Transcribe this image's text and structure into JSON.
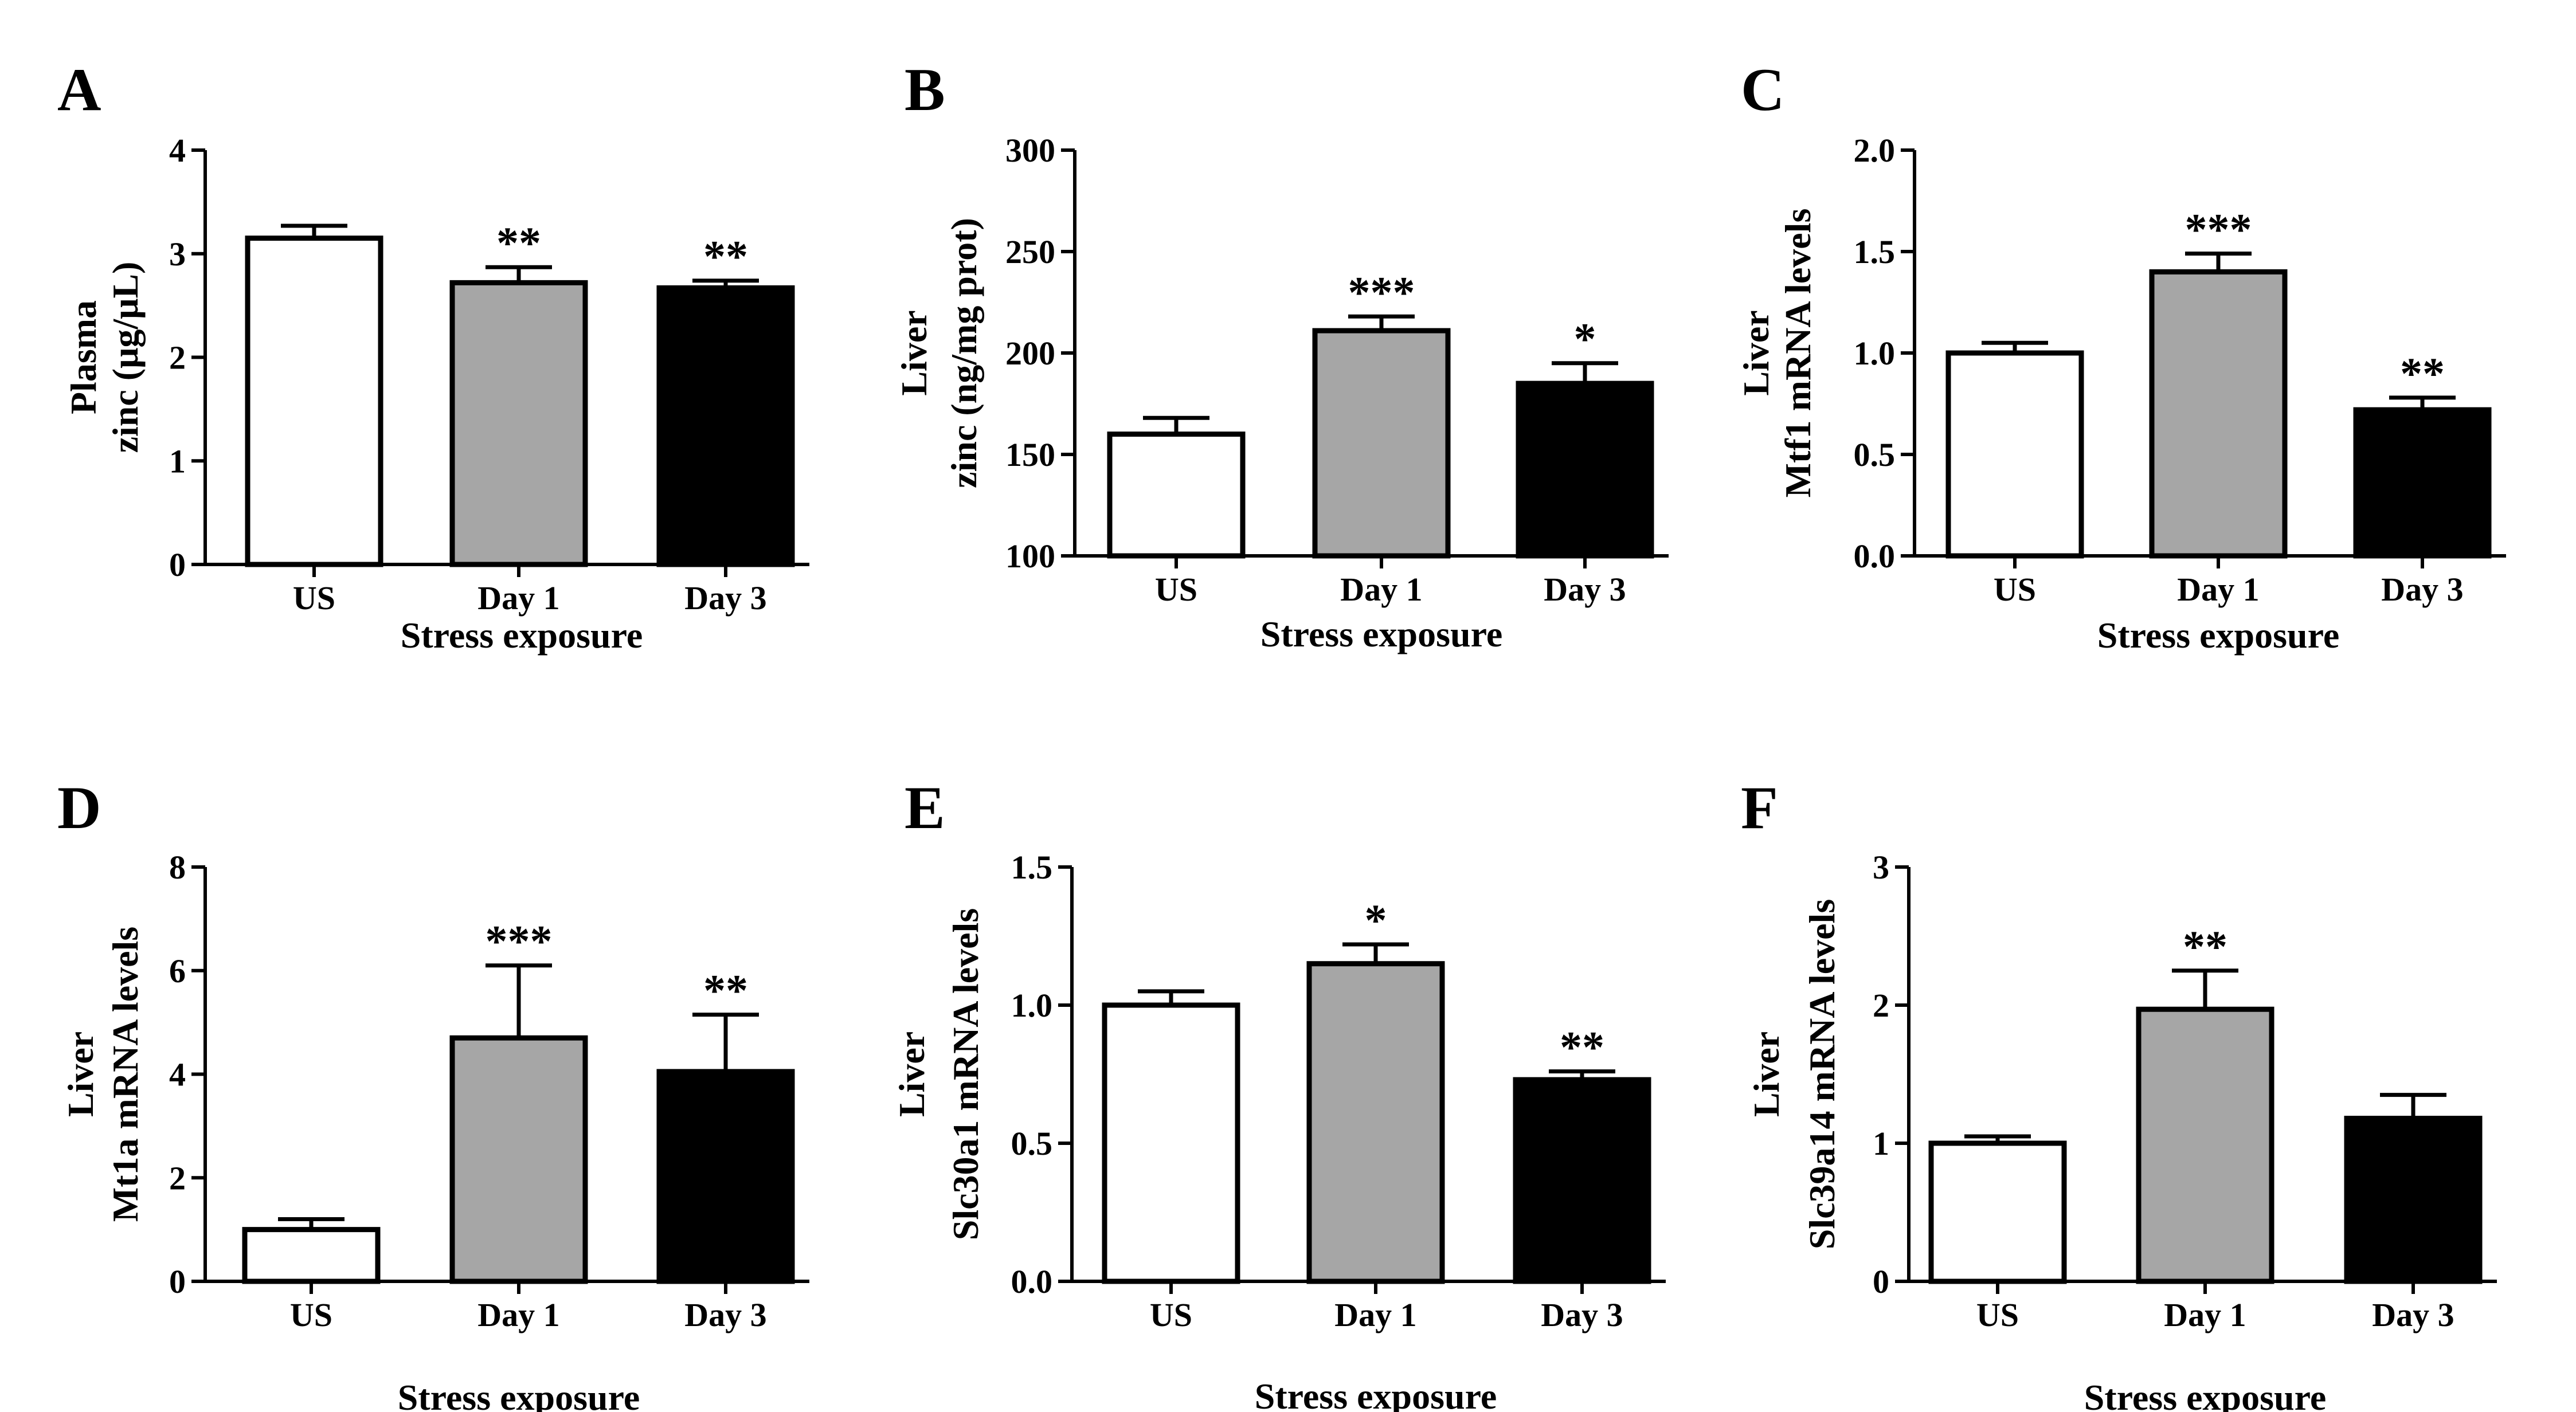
{
  "chart_data": [
    {
      "type": "bar",
      "panel": "A",
      "categories": [
        "US",
        "Day 1",
        "Day 3"
      ],
      "values": [
        3.15,
        2.72,
        2.67
      ],
      "errors": [
        0.12,
        0.15,
        0.07
      ],
      "significance": [
        "",
        "**",
        "**"
      ],
      "ylabel": [
        "Plasma",
        "zinc (μg/μL)"
      ],
      "xlabel": "Stress exposure",
      "ylim": [
        0,
        4
      ],
      "yticks": [
        "0",
        "1",
        "2",
        "3",
        "4"
      ]
    },
    {
      "type": "bar",
      "panel": "B",
      "categories": [
        "US",
        "Day 1",
        "Day 3"
      ],
      "values": [
        160,
        211,
        185
      ],
      "errors": [
        8,
        7,
        10
      ],
      "significance": [
        "",
        "***",
        "*"
      ],
      "ylabel": [
        "Liver",
        "zinc (ng/mg prot)"
      ],
      "xlabel": "Stress exposure",
      "ylim": [
        100,
        300
      ],
      "yticks": [
        "100",
        "150",
        "200",
        "250",
        "300"
      ]
    },
    {
      "type": "bar",
      "panel": "C",
      "categories": [
        "US",
        "Day 1",
        "Day 3"
      ],
      "values": [
        1.0,
        1.4,
        0.72
      ],
      "errors": [
        0.05,
        0.09,
        0.06
      ],
      "significance": [
        "",
        "***",
        "**"
      ],
      "ylabel": [
        "Liver",
        "Mtf1 mRNA levels"
      ],
      "xlabel": "Stress exposure",
      "ylim": [
        0,
        2
      ],
      "yticks": [
        "0.0",
        "0.5",
        "1.0",
        "1.5",
        "2.0"
      ]
    },
    {
      "type": "bar",
      "panel": "D",
      "categories": [
        "US",
        "Day 1",
        "Day 3"
      ],
      "values": [
        1.0,
        4.7,
        4.05
      ],
      "errors": [
        0.2,
        1.4,
        1.1
      ],
      "significance": [
        "",
        "***",
        "**"
      ],
      "ylabel": [
        "Liver",
        "Mt1a mRNA levels"
      ],
      "xlabel": "Stress exposure",
      "ylim": [
        0,
        8
      ],
      "yticks": [
        "0",
        "2",
        "4",
        "6",
        "8"
      ]
    },
    {
      "type": "bar",
      "panel": "E",
      "categories": [
        "US",
        "Day 1",
        "Day 3"
      ],
      "values": [
        1.0,
        1.15,
        0.73
      ],
      "errors": [
        0.05,
        0.07,
        0.03
      ],
      "significance": [
        "",
        "*",
        "**"
      ],
      "ylabel": [
        "Liver",
        "Slc30a1 mRNA levels"
      ],
      "xlabel": "Stress exposure",
      "ylim": [
        0,
        1.5
      ],
      "yticks": [
        "0.0",
        "0.5",
        "1.0",
        "1.5"
      ]
    },
    {
      "type": "bar",
      "panel": "F",
      "categories": [
        "US",
        "Day 1",
        "Day 3"
      ],
      "values": [
        1.0,
        1.97,
        1.18
      ],
      "errors": [
        0.05,
        0.28,
        0.17
      ],
      "significance": [
        "",
        "**",
        ""
      ],
      "ylabel": [
        "Liver",
        "Slc39a14 mRNA levels"
      ],
      "xlabel": "Stress exposure",
      "ylim": [
        0,
        3
      ],
      "yticks": [
        "0",
        "1",
        "2",
        "3"
      ]
    }
  ],
  "colors": {
    "US": "#ffffff",
    "Day 1": "#a6a6a6",
    "Day 3": "#000000",
    "stroke": "#000000"
  }
}
